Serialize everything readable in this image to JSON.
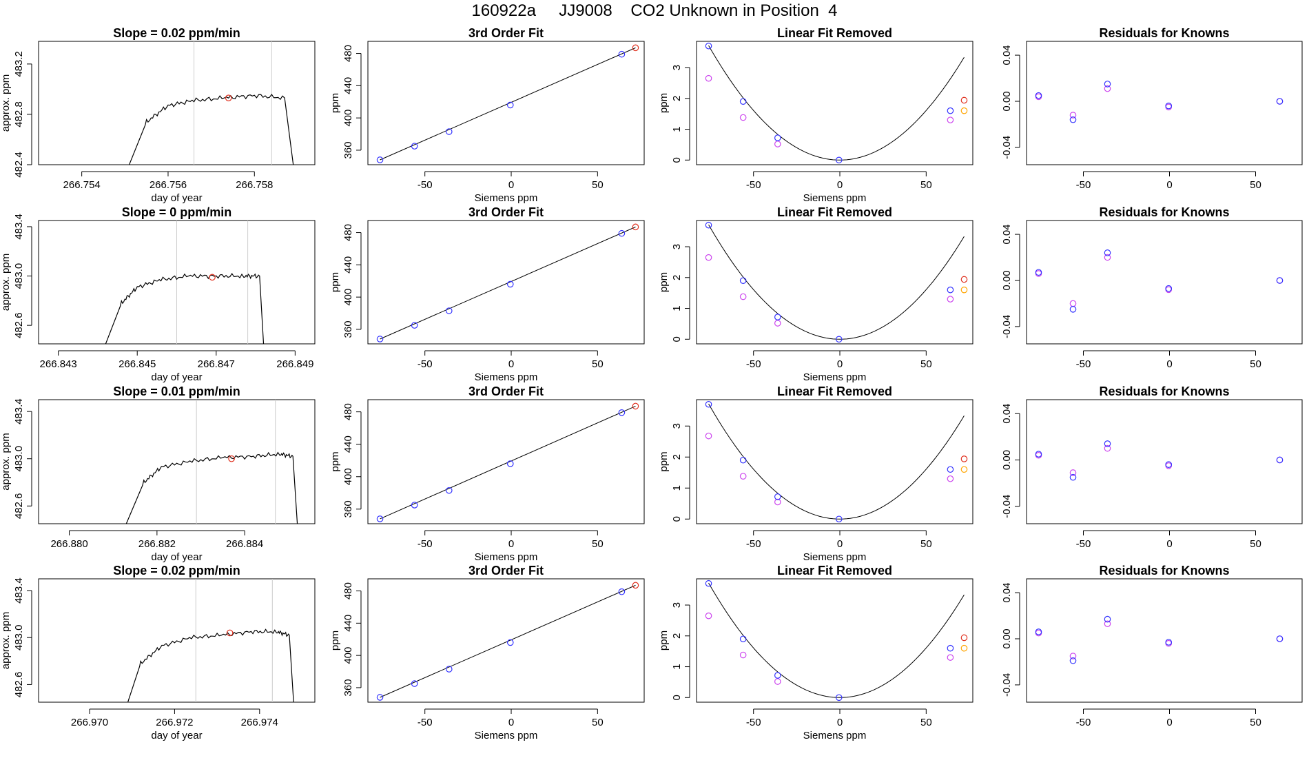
{
  "page": {
    "title": "160922a     JJ9008    CO2 Unknown in Position  4"
  },
  "colors": {
    "line": "#000000",
    "known_point": "#3333ff",
    "unknown_point": "#e0301e",
    "raw_point": "#cc44ee",
    "cal_point": "#ffa500",
    "window_line": "#cccccc"
  },
  "chart_data": [
    {
      "type": "line",
      "title": "Slope =  0.02  ppm/min",
      "xlabel": "day of year",
      "ylabel": "approx. ppm",
      "xlim": [
        266.753,
        266.7594
      ],
      "ylim": [
        482.4,
        483.38
      ],
      "xticks": [
        266.754,
        266.756,
        266.758
      ],
      "xtick_labels": [
        "266.754",
        "266.756",
        "266.758"
      ],
      "yticks": [
        482.4,
        482.8,
        483.2
      ],
      "ytick_labels": [
        "482.4",
        "482.8",
        "483.2"
      ],
      "window": [
        266.7566,
        266.7584
      ],
      "series": [
        {
          "x": [
            266.7551,
            266.7555,
            266.756,
            266.7566,
            266.7573,
            266.758,
            266.7587,
            266.7589
          ],
          "y": [
            482.4,
            482.74,
            482.87,
            482.91,
            482.93,
            482.95,
            482.93,
            482.4
          ]
        }
      ],
      "marker": {
        "x": 266.7574,
        "y": 482.93
      }
    },
    {
      "type": "line",
      "title": "3rd Order Fit",
      "xlabel": "Siemens ppm",
      "ylabel": "ppm",
      "xlim": [
        -83,
        77
      ],
      "ylim": [
        342,
        495
      ],
      "xticks": [
        -50,
        0,
        50
      ],
      "xtick_labels": [
        "-50",
        "0",
        "50"
      ],
      "yticks": [
        360,
        400,
        440,
        480
      ],
      "ytick_labels": [
        "360",
        "400",
        "440",
        "480"
      ],
      "line": {
        "x": [
          -76,
          72
        ],
        "y": [
          348,
          487
        ]
      },
      "knowns": {
        "x": [
          -76,
          -56,
          -36,
          -0.5,
          64
        ],
        "y": [
          348,
          365,
          383,
          416,
          479
        ]
      },
      "unknown": {
        "x": 72,
        "y": 487
      }
    },
    {
      "type": "scatter",
      "title": "Linear Fit Removed",
      "xlabel": "Siemens ppm",
      "ylabel": "ppm",
      "xlim": [
        -83,
        77
      ],
      "ylim": [
        -0.15,
        3.85
      ],
      "xticks": [
        -50,
        0,
        50
      ],
      "xtick_labels": [
        "-50",
        "0",
        "50"
      ],
      "yticks": [
        0,
        1,
        2,
        3
      ],
      "ytick_labels": [
        "0",
        "1",
        "2",
        "3"
      ],
      "curve": {
        "x_range": [
          -76,
          72
        ],
        "vertex_x": 0,
        "a": 0.000643
      },
      "knowns": {
        "x": [
          -76,
          -56,
          -36,
          -0.5,
          64
        ],
        "y": [
          3.7,
          1.9,
          0.72,
          0.0,
          1.6
        ]
      },
      "raw": {
        "x": [
          -76,
          -56,
          -36,
          64
        ],
        "y": [
          2.65,
          1.38,
          0.52,
          1.3
        ]
      },
      "unknown": {
        "x": 72,
        "y": 1.94
      },
      "cal": {
        "x": 72,
        "y": 1.6
      }
    },
    {
      "type": "scatter",
      "title": "Residuals for Knowns",
      "xlabel": "",
      "ylabel": "",
      "xlim": [
        -83,
        77
      ],
      "ylim": [
        -0.055,
        0.052
      ],
      "xticks": [
        -50,
        0,
        50
      ],
      "xtick_labels": [
        "-50",
        "0",
        "50"
      ],
      "yticks": [
        -0.04,
        0.0,
        0.04
      ],
      "ytick_labels": [
        "-0.04",
        "0.00",
        "0.04"
      ],
      "knowns": {
        "x": [
          -76,
          -56,
          -36,
          -0.5,
          64
        ],
        "y": [
          0.005,
          -0.016,
          0.015,
          -0.004,
          0.0
        ]
      },
      "raw": {
        "x": [
          -76,
          -56,
          -36,
          -0.5,
          64
        ],
        "y": [
          0.004,
          -0.012,
          0.011,
          -0.005,
          0.0
        ]
      }
    },
    {
      "type": "line",
      "title": "Slope =  0  ppm/min",
      "xlabel": "day of year",
      "ylabel": "approx. ppm",
      "xlim": [
        266.8425,
        266.8495
      ],
      "ylim": [
        482.45,
        483.45
      ],
      "xticks": [
        266.843,
        266.845,
        266.847,
        266.849
      ],
      "xtick_labels": [
        "266.843",
        "266.845",
        "266.847",
        "266.849"
      ],
      "yticks": [
        482.6,
        483.0,
        483.4
      ],
      "ytick_labels": [
        "482.6",
        "483.0",
        "483.4"
      ],
      "window": [
        266.846,
        266.8478
      ],
      "series": [
        {
          "x": [
            266.8442,
            266.8446,
            266.845,
            266.8456,
            266.8463,
            266.847,
            266.8477,
            266.8481,
            266.8482
          ],
          "y": [
            482.45,
            482.78,
            482.91,
            482.97,
            483.0,
            483.0,
            483.0,
            483.0,
            482.45
          ]
        }
      ],
      "marker": {
        "x": 266.8469,
        "y": 482.99
      }
    },
    {
      "type": "line",
      "title": "3rd Order Fit",
      "xlabel": "Siemens ppm",
      "ylabel": "ppm",
      "xlim": [
        -83,
        77
      ],
      "ylim": [
        342,
        495
      ],
      "xticks": [
        -50,
        0,
        50
      ],
      "xtick_labels": [
        "-50",
        "0",
        "50"
      ],
      "yticks": [
        360,
        400,
        440,
        480
      ],
      "ytick_labels": [
        "360",
        "400",
        "440",
        "480"
      ],
      "line": {
        "x": [
          -76,
          72
        ],
        "y": [
          348,
          487
        ]
      },
      "knowns": {
        "x": [
          -76,
          -56,
          -36,
          -0.5,
          64
        ],
        "y": [
          348,
          365,
          383,
          416,
          479
        ]
      },
      "unknown": {
        "x": 72,
        "y": 487
      }
    },
    {
      "type": "scatter",
      "title": "Linear Fit Removed",
      "xlabel": "Siemens ppm",
      "ylabel": "ppm",
      "xlim": [
        -83,
        77
      ],
      "ylim": [
        -0.15,
        3.85
      ],
      "xticks": [
        -50,
        0,
        50
      ],
      "xtick_labels": [
        "-50",
        "0",
        "50"
      ],
      "yticks": [
        0,
        1,
        2,
        3
      ],
      "ytick_labels": [
        "0",
        "1",
        "2",
        "3"
      ],
      "curve": {
        "x_range": [
          -76,
          72
        ],
        "vertex_x": 0,
        "a": 0.000643
      },
      "knowns": {
        "x": [
          -76,
          -56,
          -36,
          -0.5,
          64
        ],
        "y": [
          3.7,
          1.9,
          0.72,
          0.0,
          1.6
        ]
      },
      "raw": {
        "x": [
          -76,
          -56,
          -36,
          64
        ],
        "y": [
          2.65,
          1.38,
          0.52,
          1.3
        ]
      },
      "unknown": {
        "x": 72,
        "y": 1.94
      },
      "cal": {
        "x": 72,
        "y": 1.6
      }
    },
    {
      "type": "scatter",
      "title": "Residuals for Knowns",
      "xlabel": "",
      "ylabel": "",
      "xlim": [
        -83,
        77
      ],
      "ylim": [
        -0.055,
        0.052
      ],
      "xticks": [
        -50,
        0,
        50
      ],
      "xtick_labels": [
        "-50",
        "0",
        "50"
      ],
      "yticks": [
        -0.04,
        0.0,
        0.04
      ],
      "ytick_labels": [
        "-0.04",
        "0.00",
        "0.04"
      ],
      "knowns": {
        "x": [
          -76,
          -56,
          -36,
          -0.5,
          64
        ],
        "y": [
          0.007,
          -0.025,
          0.024,
          -0.007,
          0.0
        ]
      },
      "raw": {
        "x": [
          -76,
          -56,
          -36,
          -0.5,
          64
        ],
        "y": [
          0.006,
          -0.02,
          0.02,
          -0.008,
          0.0
        ]
      }
    },
    {
      "type": "line",
      "title": "Slope =  0.01  ppm/min",
      "xlabel": "day of year",
      "ylabel": "approx. ppm",
      "xlim": [
        266.8793,
        266.8856
      ],
      "ylim": [
        482.45,
        483.5
      ],
      "xticks": [
        266.88,
        266.882,
        266.884
      ],
      "xtick_labels": [
        "266.880",
        "266.882",
        "266.884"
      ],
      "yticks": [
        482.6,
        483.0,
        483.4
      ],
      "ytick_labels": [
        "482.6",
        "483.0",
        "483.4"
      ],
      "window": [
        266.8829,
        266.8847
      ],
      "series": [
        {
          "x": [
            266.8813,
            266.8817,
            266.8821,
            266.8828,
            266.8835,
            266.8842,
            266.8848,
            266.8851,
            266.8852
          ],
          "y": [
            482.45,
            482.8,
            482.93,
            482.98,
            483.01,
            483.02,
            483.04,
            483.02,
            482.45
          ]
        }
      ],
      "marker": {
        "x": 266.8837,
        "y": 483.0
      }
    },
    {
      "type": "line",
      "title": "3rd Order Fit",
      "xlabel": "Siemens ppm",
      "ylabel": "ppm",
      "xlim": [
        -83,
        77
      ],
      "ylim": [
        342,
        495
      ],
      "xticks": [
        -50,
        0,
        50
      ],
      "xtick_labels": [
        "-50",
        "0",
        "50"
      ],
      "yticks": [
        360,
        400,
        440,
        480
      ],
      "ytick_labels": [
        "360",
        "400",
        "440",
        "480"
      ],
      "line": {
        "x": [
          -76,
          72
        ],
        "y": [
          348,
          487
        ]
      },
      "knowns": {
        "x": [
          -76,
          -56,
          -36,
          -0.5,
          64
        ],
        "y": [
          348,
          365,
          383,
          416,
          479
        ]
      },
      "unknown": {
        "x": 72,
        "y": 487
      }
    },
    {
      "type": "scatter",
      "title": "Linear Fit Removed",
      "xlabel": "Siemens ppm",
      "ylabel": "ppm",
      "xlim": [
        -83,
        77
      ],
      "ylim": [
        -0.15,
        3.85
      ],
      "xticks": [
        -50,
        0,
        50
      ],
      "xtick_labels": [
        "-50",
        "0",
        "50"
      ],
      "yticks": [
        0,
        1,
        2,
        3
      ],
      "ytick_labels": [
        "0",
        "1",
        "2",
        "3"
      ],
      "curve": {
        "x_range": [
          -76,
          72
        ],
        "vertex_x": 0,
        "a": 0.000643
      },
      "knowns": {
        "x": [
          -76,
          -56,
          -36,
          -0.5,
          64
        ],
        "y": [
          3.7,
          1.9,
          0.72,
          0.0,
          1.6
        ]
      },
      "raw": {
        "x": [
          -76,
          -56,
          -36,
          64
        ],
        "y": [
          2.68,
          1.38,
          0.55,
          1.3
        ]
      },
      "unknown": {
        "x": 72,
        "y": 1.94
      },
      "cal": {
        "x": 72,
        "y": 1.6
      }
    },
    {
      "type": "scatter",
      "title": "Residuals for Knowns",
      "xlabel": "",
      "ylabel": "",
      "xlim": [
        -83,
        77
      ],
      "ylim": [
        -0.055,
        0.052
      ],
      "xticks": [
        -50,
        0,
        50
      ],
      "xtick_labels": [
        "-50",
        "0",
        "50"
      ],
      "yticks": [
        -0.04,
        0.0,
        0.04
      ],
      "ytick_labels": [
        "-0.04",
        "0.00",
        "0.04"
      ],
      "knowns": {
        "x": [
          -76,
          -56,
          -36,
          -0.5,
          64
        ],
        "y": [
          0.005,
          -0.015,
          0.014,
          -0.004,
          0.0
        ]
      },
      "raw": {
        "x": [
          -76,
          -56,
          -36,
          -0.5,
          64
        ],
        "y": [
          0.004,
          -0.011,
          0.01,
          -0.005,
          0.0
        ]
      }
    },
    {
      "type": "line",
      "title": "Slope =  0.02  ppm/min",
      "xlabel": "day of year",
      "ylabel": "approx. ppm",
      "xlim": [
        266.9688,
        266.9753
      ],
      "ylim": [
        482.45,
        483.5
      ],
      "xticks": [
        266.97,
        266.972,
        266.974
      ],
      "xtick_labels": [
        "266.970",
        "266.972",
        "266.974"
      ],
      "yticks": [
        482.6,
        483.0,
        483.4
      ],
      "ytick_labels": [
        "482.6",
        "483.0",
        "483.4"
      ],
      "window": [
        266.9725,
        266.9743
      ],
      "series": [
        {
          "x": [
            266.9709,
            266.9712,
            266.9717,
            266.9724,
            266.9731,
            266.9738,
            266.9744,
            266.9747,
            266.9748
          ],
          "y": [
            482.45,
            482.78,
            482.93,
            483.0,
            483.02,
            483.05,
            483.05,
            483.02,
            482.45
          ]
        }
      ],
      "marker": {
        "x": 266.9733,
        "y": 483.04
      }
    },
    {
      "type": "line",
      "title": "3rd Order Fit",
      "xlabel": "Siemens ppm",
      "ylabel": "ppm",
      "xlim": [
        -83,
        77
      ],
      "ylim": [
        342,
        495
      ],
      "xticks": [
        -50,
        0,
        50
      ],
      "xtick_labels": [
        "-50",
        "0",
        "50"
      ],
      "yticks": [
        360,
        400,
        440,
        480
      ],
      "ytick_labels": [
        "360",
        "400",
        "440",
        "480"
      ],
      "line": {
        "x": [
          -76,
          72
        ],
        "y": [
          348,
          487
        ]
      },
      "knowns": {
        "x": [
          -76,
          -56,
          -36,
          -0.5,
          64
        ],
        "y": [
          348,
          365,
          383,
          416,
          479
        ]
      },
      "unknown": {
        "x": 72,
        "y": 487
      }
    },
    {
      "type": "scatter",
      "title": "Linear Fit Removed",
      "xlabel": "Siemens ppm",
      "ylabel": "ppm",
      "xlim": [
        -83,
        77
      ],
      "ylim": [
        -0.15,
        3.85
      ],
      "xticks": [
        -50,
        0,
        50
      ],
      "xtick_labels": [
        "-50",
        "0",
        "50"
      ],
      "yticks": [
        0,
        1,
        2,
        3
      ],
      "ytick_labels": [
        "0",
        "1",
        "2",
        "3"
      ],
      "curve": {
        "x_range": [
          -76,
          72
        ],
        "vertex_x": 0,
        "a": 0.000643
      },
      "knowns": {
        "x": [
          -76,
          -56,
          -36,
          -0.5,
          64
        ],
        "y": [
          3.7,
          1.9,
          0.72,
          0.0,
          1.6
        ]
      },
      "raw": {
        "x": [
          -76,
          -56,
          -36,
          64
        ],
        "y": [
          2.65,
          1.38,
          0.52,
          1.3
        ]
      },
      "unknown": {
        "x": 72,
        "y": 1.94
      },
      "cal": {
        "x": 72,
        "y": 1.6
      }
    },
    {
      "type": "scatter",
      "title": "Residuals for Knowns",
      "xlabel": "",
      "ylabel": "",
      "xlim": [
        -83,
        77
      ],
      "ylim": [
        -0.055,
        0.052
      ],
      "xticks": [
        -50,
        0,
        50
      ],
      "xtick_labels": [
        "-50",
        "0",
        "50"
      ],
      "yticks": [
        -0.04,
        0.0,
        0.04
      ],
      "ytick_labels": [
        "-0.04",
        "0.00",
        "0.04"
      ],
      "knowns": {
        "x": [
          -76,
          -56,
          -36,
          -0.5,
          64
        ],
        "y": [
          0.006,
          -0.019,
          0.017,
          -0.003,
          0.0
        ]
      },
      "raw": {
        "x": [
          -76,
          -56,
          -36,
          -0.5,
          64
        ],
        "y": [
          0.005,
          -0.015,
          0.013,
          -0.004,
          0.0
        ]
      }
    }
  ]
}
